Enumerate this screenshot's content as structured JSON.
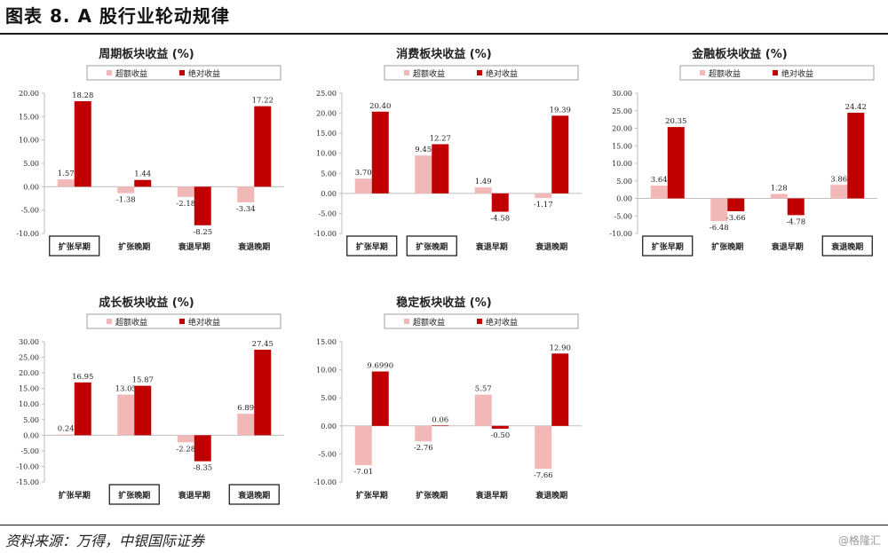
{
  "header": {
    "title": "图表 8. A 股行业轮动规律"
  },
  "footer": {
    "source": "资料来源：万得，中银国际证券",
    "watermark": "@格隆汇"
  },
  "colors": {
    "excess": "#F2B8B8",
    "absolute": "#C00000",
    "axis": "#bfbfbf",
    "text": "#222222"
  },
  "legend": {
    "excess": "超额收益",
    "absolute": "绝对收益"
  },
  "chart_data": [
    {
      "type": "bar",
      "title": "周期板块收益 (%)",
      "categories": [
        "扩张早期",
        "扩张晚期",
        "衰退早期",
        "衰退晚期"
      ],
      "series": [
        {
          "name": "超额收益",
          "values": [
            1.57,
            -1.38,
            -2.18,
            -3.34
          ],
          "labels": [
            "1.57",
            "-1.38",
            "-2.18",
            "-3.34"
          ]
        },
        {
          "name": "绝对收益",
          "values": [
            18.28,
            1.44,
            -8.25,
            17.22
          ],
          "labels": [
            "18.28",
            "1.44",
            "-8.25",
            "17.22"
          ]
        }
      ],
      "ylim": [
        -10,
        20
      ],
      "ticks": [
        "20.00",
        "15.00",
        "10.00",
        "5.00",
        "0.00",
        "-5.00",
        "-10.00"
      ],
      "boxed": [
        0
      ]
    },
    {
      "type": "bar",
      "title": "消费板块收益 (%)",
      "categories": [
        "扩张早期",
        "扩张晚期",
        "衰退早期",
        "衰退晚期"
      ],
      "series": [
        {
          "name": "超额收益",
          "values": [
            3.7,
            9.45,
            1.49,
            -1.17
          ],
          "labels": [
            "3.70",
            "9.45",
            "1.49",
            "-1.17"
          ]
        },
        {
          "name": "绝对收益",
          "values": [
            20.4,
            12.27,
            -4.58,
            19.39
          ],
          "labels": [
            "20.40",
            "12.27",
            "-4.58",
            "19.39"
          ]
        }
      ],
      "ylim": [
        -10,
        25
      ],
      "ticks": [
        "25.00",
        "20.00",
        "15.00",
        "10.00",
        "5.00",
        "0.00",
        "-5.00",
        "-10.00"
      ],
      "boxed": [
        0,
        1
      ]
    },
    {
      "type": "bar",
      "title": "金融板块收益 (%)",
      "categories": [
        "扩张早期",
        "扩张晚期",
        "衰退早期",
        "衰退晚期"
      ],
      "series": [
        {
          "name": "超额收益",
          "values": [
            3.64,
            -6.48,
            1.28,
            3.86
          ],
          "labels": [
            "3.64",
            "-6.48",
            "1.28",
            "3.86"
          ]
        },
        {
          "name": "绝对收益",
          "values": [
            20.35,
            -3.66,
            -4.78,
            24.42
          ],
          "labels": [
            "20.35",
            "-3.66",
            "-4.78",
            "24.42"
          ]
        }
      ],
      "ylim": [
        -10,
        30
      ],
      "ticks": [
        "30.00",
        "25.00",
        "20.00",
        "15.00",
        "10.00",
        "5.00",
        "0.00",
        "-5.00",
        "-10.00"
      ],
      "boxed": [
        0,
        3
      ]
    },
    {
      "type": "bar",
      "title": "成长板块收益 (%)",
      "categories": [
        "扩张早期",
        "扩张晚期",
        "衰退早期",
        "衰退晚期"
      ],
      "series": [
        {
          "name": "超额收益",
          "values": [
            0.24,
            13.05,
            -2.28,
            6.89
          ],
          "labels": [
            "0.24",
            "13.05",
            "-2.28",
            "6.89"
          ]
        },
        {
          "name": "绝对收益",
          "values": [
            16.95,
            15.87,
            -8.35,
            27.45
          ],
          "labels": [
            "16.95",
            "15.87",
            "-8.35",
            "27.45"
          ]
        }
      ],
      "ylim": [
        -15,
        30
      ],
      "ticks": [
        "30.00",
        "25.00",
        "20.00",
        "15.00",
        "10.00",
        "5.00",
        "0.00",
        "-5.00",
        "-10.00",
        "-15.00"
      ],
      "boxed": [
        1,
        3
      ]
    },
    {
      "type": "bar",
      "title": "稳定板块收益 (%)",
      "categories": [
        "扩张早期",
        "扩张晚期",
        "衰退早期",
        "衰退晚期"
      ],
      "series": [
        {
          "name": "超额收益",
          "values": [
            -7.01,
            -2.76,
            5.57,
            -7.66
          ],
          "labels": [
            "-7.01",
            "-2.76",
            "5.57",
            "-7.66"
          ]
        },
        {
          "name": "绝对收益",
          "values": [
            9.699,
            0.06,
            -0.5,
            12.9
          ],
          "labels": [
            "9.6990",
            "0.06",
            "-0.50",
            "12.90"
          ]
        }
      ],
      "ylim": [
        -10,
        15
      ],
      "ticks": [
        "15.00",
        "10.00",
        "5.00",
        "0.00",
        "-5.00",
        "-10.00"
      ],
      "boxed": []
    }
  ]
}
